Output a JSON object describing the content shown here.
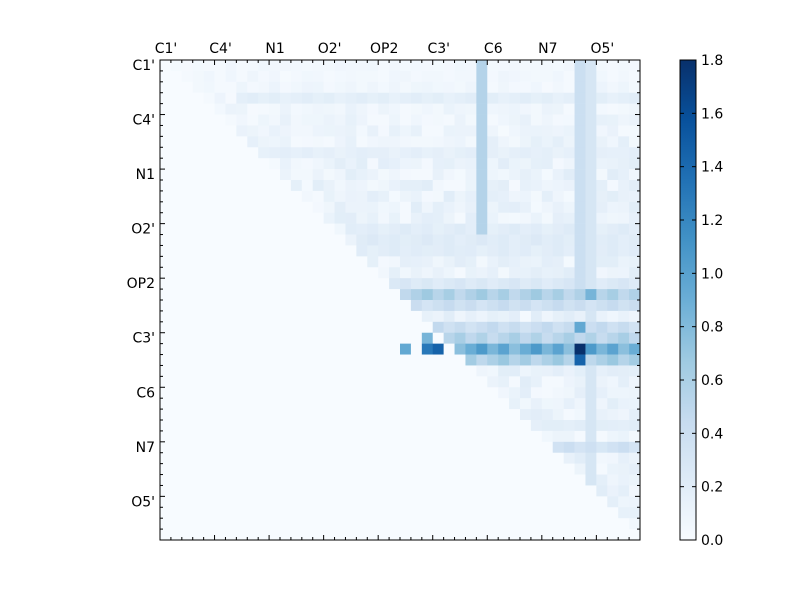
{
  "chart_data": {
    "type": "heatmap",
    "n": 44,
    "x_tick_labels": [
      "C1'",
      "C4'",
      "N1",
      "O2'",
      "OP2",
      "C3'",
      "C6",
      "N7",
      "O5'"
    ],
    "y_tick_labels": [
      "C1'",
      "C4'",
      "N1",
      "O2'",
      "OP2",
      "C3'",
      "C6",
      "N7",
      "O5'"
    ],
    "label_step": 5,
    "colorbar": {
      "min": 0.0,
      "max": 1.8,
      "ticks": [
        "0.0",
        "0.2",
        "0.4",
        "0.6",
        "0.8",
        "1.0",
        "1.2",
        "1.4",
        "1.6",
        "1.8"
      ],
      "colormap": [
        "#f7fbff",
        "#deebf7",
        "#c6dbef",
        "#9ecae1",
        "#6baed6",
        "#4292c6",
        "#2171b5",
        "#08519c",
        "#08306b"
      ]
    },
    "features": {
      "row_bands": [
        {
          "row": 3,
          "from": 7,
          "to": 43,
          "value": 0.18
        },
        {
          "row": 8,
          "from": 7,
          "to": 43,
          "value": 0.16
        },
        {
          "row": 15,
          "from": 18,
          "to": 43,
          "value": 0.2
        },
        {
          "row": 16,
          "from": 18,
          "to": 43,
          "value": 0.22
        },
        {
          "row": 17,
          "from": 18,
          "to": 43,
          "value": 0.2
        },
        {
          "row": 20,
          "from": 17,
          "to": 43,
          "value": 0.26
        },
        {
          "row": 21,
          "from": 17,
          "to": 43,
          "value": 0.6
        },
        {
          "row": 22,
          "from": 18,
          "to": 43,
          "value": 0.4
        },
        {
          "row": 24,
          "from": 22,
          "to": 43,
          "value": 0.42
        },
        {
          "row": 25,
          "from": 22,
          "to": 43,
          "value": 0.55
        },
        {
          "row": 26,
          "from": 22,
          "to": 43,
          "value": 0.95
        },
        {
          "row": 27,
          "from": 22,
          "to": 43,
          "value": 0.62
        },
        {
          "row": 33,
          "from": 30,
          "to": 43,
          "value": 0.18
        },
        {
          "row": 35,
          "from": 30,
          "to": 43,
          "value": 0.36
        }
      ],
      "column_bands": [
        {
          "col": 29,
          "from": 0,
          "to": 15,
          "value": 0.55
        },
        {
          "col": 38,
          "from": 0,
          "to": 22,
          "value": 0.4
        },
        {
          "col": 39,
          "from": 0,
          "to": 40,
          "value": 0.3
        }
      ],
      "hot_cells": [
        {
          "row": 26,
          "col": 24,
          "value": 1.3
        },
        {
          "row": 26,
          "col": 25,
          "value": 1.45
        },
        {
          "row": 25,
          "col": 24,
          "value": 0.85
        },
        {
          "row": 26,
          "col": 38,
          "value": 1.8
        },
        {
          "row": 27,
          "col": 38,
          "value": 1.45
        },
        {
          "row": 24,
          "col": 38,
          "value": 0.95
        },
        {
          "row": 21,
          "col": 39,
          "value": 0.85
        },
        {
          "row": 26,
          "col": 22,
          "value": 0.95
        }
      ]
    }
  }
}
